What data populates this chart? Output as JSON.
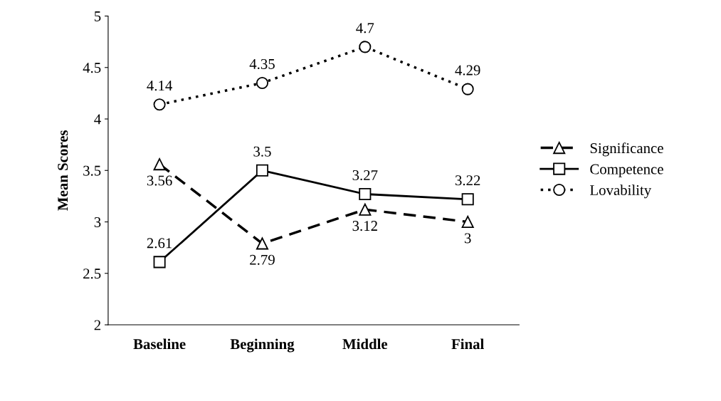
{
  "chart_data": {
    "type": "line",
    "ylabel": "Mean Scores",
    "categories": [
      "Baseline",
      "Beginning",
      "Middle",
      "Final"
    ],
    "series": [
      {
        "name": "Significance",
        "color": "#000000",
        "values": [
          3.56,
          2.79,
          3.12,
          3
        ],
        "marker": "triangle",
        "line_style": "dashed"
      },
      {
        "name": "Competence",
        "color": "#000000",
        "values": [
          2.61,
          3.5,
          3.27,
          3.22
        ],
        "marker": "square",
        "line_style": "solid"
      },
      {
        "name": "Lovability",
        "color": "#000000",
        "values": [
          4.14,
          4.35,
          4.7,
          4.29
        ],
        "marker": "circle",
        "line_style": "dotted"
      }
    ],
    "ylim": [
      2,
      5
    ],
    "yticks": [
      2,
      2.5,
      3,
      3.5,
      4,
      4.5,
      5
    ],
    "grid": false,
    "legend": "right",
    "data_labels": true
  }
}
